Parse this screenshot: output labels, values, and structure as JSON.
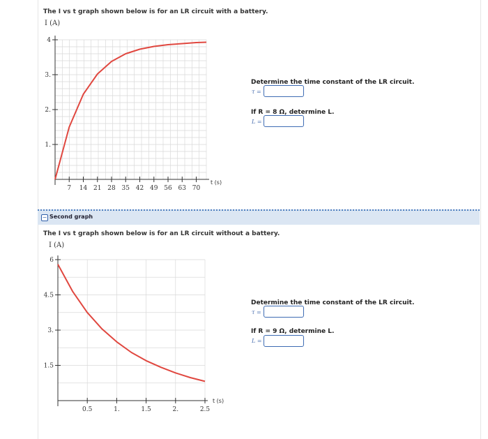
{
  "graph1": {
    "intro": "The I vs t graph shown below is for an LR circuit with a battery.",
    "ylabel": "I (A)",
    "xlabel": "t (s)",
    "yticks": [
      "1.",
      "2.",
      "3.",
      "4"
    ],
    "xticks": [
      "7",
      "14",
      "21",
      "28",
      "35",
      "42",
      "49",
      "56",
      "63",
      "70"
    ],
    "q1": "Determine the time constant of the LR circuit.",
    "q1_symbol": "τ =",
    "q2": "If R = 8 Ω, determine L.",
    "q2_symbol": "L =",
    "tau_value": "",
    "L_value": ""
  },
  "section": {
    "toggle": "−",
    "title": "Second graph"
  },
  "graph2": {
    "intro": "The I vs t graph shown below is for an LR circuit without a battery.",
    "ylabel": "I (A)",
    "xlabel": "t (s)",
    "yticks": [
      "1.5",
      "3.",
      "4.5",
      "6"
    ],
    "xticks": [
      "0.5",
      "1.",
      "1.5",
      "2.",
      "2.5"
    ],
    "q1": "Determine the time constant of the LR circuit.",
    "q1_symbol": "τ =",
    "q2": "If R = 9 Ω, determine L.",
    "q2_symbol": "L =",
    "tau_value": "",
    "L_value": ""
  },
  "colors": {
    "curve": "#e0473f",
    "grid": "#d9d9d9",
    "input_border": "#3d6bb3",
    "section_bg": "#dbe6f3"
  },
  "chart_data": [
    {
      "type": "line",
      "title": "",
      "xlabel": "t (s)",
      "ylabel": "I (A)",
      "xlim": [
        0,
        75
      ],
      "ylim": [
        0,
        4
      ],
      "grid": true,
      "series": [
        {
          "x": [
            0,
            7,
            14,
            21,
            28,
            35,
            42,
            49,
            56,
            63,
            70,
            75
          ],
          "values": [
            0,
            1.5,
            2.44,
            3.02,
            3.38,
            3.6,
            3.73,
            3.81,
            3.86,
            3.89,
            3.92,
            3.93
          ]
        }
      ]
    },
    {
      "type": "line",
      "title": "",
      "xlabel": "t (s)",
      "ylabel": "I (A)",
      "xlim": [
        0,
        2.5
      ],
      "ylim": [
        0,
        6
      ],
      "grid": true,
      "series": [
        {
          "x": [
            0,
            0.25,
            0.5,
            0.75,
            1.0,
            1.25,
            1.5,
            1.75,
            2.0,
            2.25,
            2.5
          ],
          "values": [
            5.8,
            4.65,
            3.75,
            3.05,
            2.5,
            2.05,
            1.7,
            1.42,
            1.18,
            0.98,
            0.82
          ]
        }
      ]
    }
  ]
}
